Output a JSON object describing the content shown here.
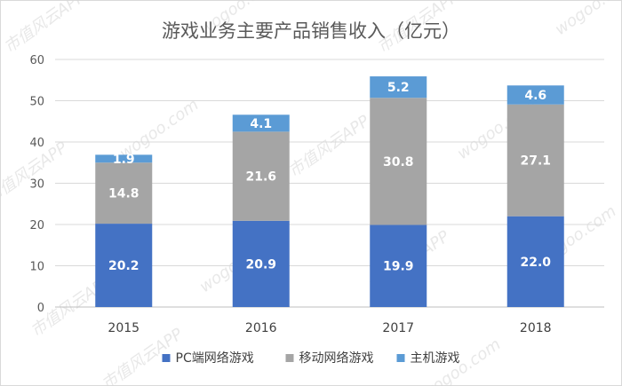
{
  "watermark": [
    "市值风云APP",
    "wogoo.com"
  ],
  "colors": {
    "pc": "#4472C4",
    "mobile": "#A5A5A5",
    "console": "#5B9BD5",
    "grid": "#d9d9d9",
    "axis": "#bfbfbf"
  },
  "chart_data": {
    "type": "bar",
    "stacked": true,
    "title": "游戏业务主要产品销售收入（亿元）",
    "categories": [
      "2015",
      "2016",
      "2017",
      "2018"
    ],
    "series": [
      {
        "name": "PC端网络游戏",
        "values": [
          20.2,
          20.9,
          19.9,
          22.0
        ],
        "labels": [
          "20.2",
          "20.9",
          "19.9",
          "22.0"
        ]
      },
      {
        "name": "移动网络游戏",
        "values": [
          14.8,
          21.6,
          30.8,
          27.1
        ],
        "labels": [
          "14.8",
          "21.6",
          "30.8",
          "27.1"
        ]
      },
      {
        "name": "主机游戏",
        "values": [
          1.9,
          4.1,
          5.2,
          4.6
        ],
        "labels": [
          "1.9",
          "4.1",
          "5.2",
          "4.6"
        ]
      }
    ],
    "ylim": [
      0,
      60
    ],
    "yticks": [
      0,
      10,
      20,
      30,
      40,
      50,
      60
    ],
    "grid": true,
    "legend": "bottom"
  }
}
